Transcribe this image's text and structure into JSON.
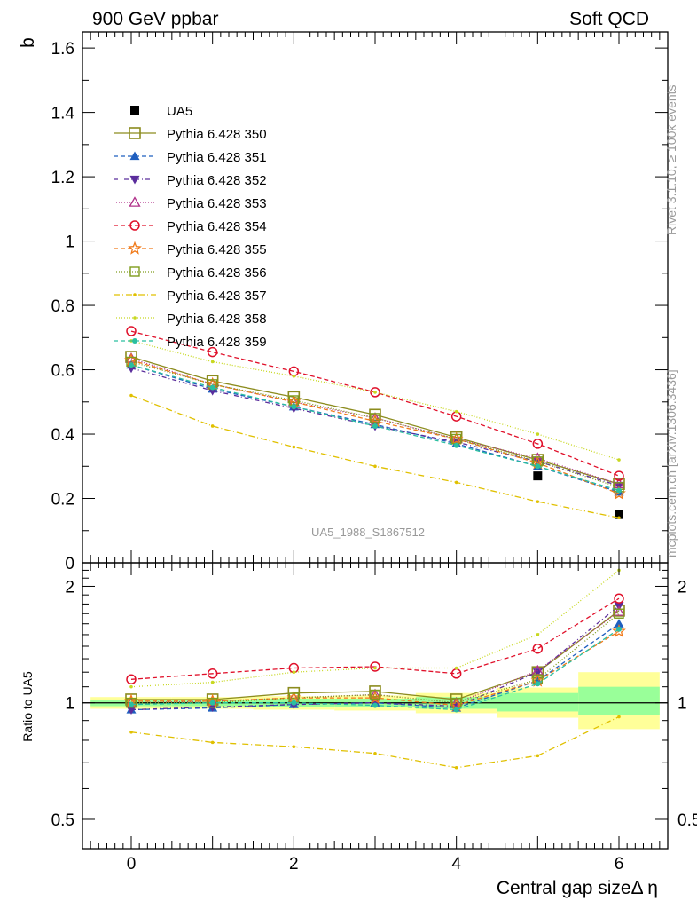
{
  "header": {
    "left": "900 GeV ppbar",
    "right": "Soft QCD"
  },
  "side_texts": {
    "rivet": "Rivet 3.1.10, ≥ 100k events",
    "mcplots": "mcplots.cern.ch [arXiv:1306.3436]"
  },
  "watermark": "UA5_1988_S1867512",
  "chart_data": [
    {
      "type": "scatter",
      "ylabel": "b",
      "xlim": [
        -0.6,
        6.6
      ],
      "ylim": [
        0,
        1.65
      ],
      "yticks": [
        0,
        0.2,
        0.4,
        0.6,
        0.8,
        1,
        1.2,
        1.4,
        1.6
      ],
      "ytick_labels": [
        "0",
        "0.2",
        "0.4",
        "0.6",
        "0.8",
        "1",
        "1.2",
        "1.4",
        "1.6"
      ],
      "grid": false,
      "legend_position": "upper-left",
      "x": [
        0,
        1,
        2,
        3,
        4,
        5,
        6
      ],
      "series": [
        {
          "name": "UA5",
          "color": "#000000",
          "dash": "",
          "marker": "filled-square",
          "values": [
            null,
            null,
            null,
            null,
            null,
            0.27,
            0.15
          ]
        },
        {
          "name": "Pythia 6.428 350",
          "color": "#8c8c1e",
          "dash": "",
          "marker": "open-square",
          "values": [
            0.64,
            0.565,
            0.515,
            0.46,
            0.39,
            0.32,
            0.245
          ]
        },
        {
          "name": "Pythia 6.428 351",
          "color": "#1f5fbf",
          "dash": "5,3",
          "marker": "filled-triangle-up",
          "values": [
            0.615,
            0.54,
            0.485,
            0.43,
            0.37,
            0.3,
            0.22
          ]
        },
        {
          "name": "Pythia 6.428 352",
          "color": "#5a2d9c",
          "dash": "5,3,1,3",
          "marker": "filled-triangle-down",
          "values": [
            0.605,
            0.535,
            0.48,
            0.425,
            0.375,
            0.315,
            0.24
          ]
        },
        {
          "name": "Pythia 6.428 353",
          "color": "#b0308a",
          "dash": "1,2",
          "marker": "open-triangle-up",
          "values": [
            0.635,
            0.555,
            0.5,
            0.45,
            0.385,
            0.325,
            0.245
          ]
        },
        {
          "name": "Pythia 6.428 354",
          "color": "#e0102a",
          "dash": "5,3",
          "marker": "open-circle",
          "values": [
            0.72,
            0.655,
            0.595,
            0.53,
            0.455,
            0.37,
            0.27
          ]
        },
        {
          "name": "Pythia 6.428 355",
          "color": "#f07a1a",
          "dash": "5,3",
          "marker": "open-star",
          "values": [
            0.63,
            0.555,
            0.5,
            0.44,
            0.385,
            0.31,
            0.215
          ]
        },
        {
          "name": "Pythia 6.428 356",
          "color": "#7f9c1c",
          "dash": "1,2",
          "marker": "open-square-small",
          "values": [
            0.625,
            0.555,
            0.505,
            0.45,
            0.385,
            0.315,
            0.235
          ]
        },
        {
          "name": "Pythia 6.428 357",
          "color": "#e0c000",
          "dash": "7,3,1,3",
          "marker": "dot",
          "values": [
            0.52,
            0.425,
            0.36,
            0.3,
            0.25,
            0.19,
            0.14
          ]
        },
        {
          "name": "Pythia 6.428 358",
          "color": "#c8d820",
          "dash": "1,2",
          "marker": "dot",
          "values": [
            0.69,
            0.625,
            0.58,
            0.53,
            0.47,
            0.4,
            0.32
          ]
        },
        {
          "name": "Pythia 6.428 359",
          "color": "#2abfa0",
          "dash": "5,3",
          "marker": "filled-circle-small",
          "values": [
            0.615,
            0.545,
            0.485,
            0.425,
            0.365,
            0.3,
            0.225
          ]
        }
      ]
    },
    {
      "type": "line",
      "ylabel": "Ratio to UA5",
      "xlabel": "Central gap sizeΔ η",
      "xticks": [
        0,
        2,
        4,
        6
      ],
      "xtick_labels": [
        "0",
        "2",
        "4",
        "6"
      ],
      "xlim": [
        -0.6,
        6.6
      ],
      "ylim": [
        0.42,
        2.3
      ],
      "yscale": "log",
      "yticks": [
        0.5,
        1,
        2
      ],
      "ytick_labels": [
        "0.5",
        "1",
        "2"
      ],
      "reference_line": 1,
      "bands": [
        {
          "x0": -0.5,
          "x1": 0.5,
          "inner": [
            0.98,
            1.02
          ],
          "outer": [
            0.965,
            1.035
          ]
        },
        {
          "x0": 0.5,
          "x1": 1.5,
          "inner": [
            0.98,
            1.02
          ],
          "outer": [
            0.965,
            1.035
          ]
        },
        {
          "x0": 1.5,
          "x1": 2.5,
          "inner": [
            0.975,
            1.025
          ],
          "outer": [
            0.96,
            1.04
          ]
        },
        {
          "x0": 2.5,
          "x1": 3.5,
          "inner": [
            0.975,
            1.025
          ],
          "outer": [
            0.955,
            1.045
          ]
        },
        {
          "x0": 3.5,
          "x1": 4.5,
          "inner": [
            0.965,
            1.035
          ],
          "outer": [
            0.94,
            1.06
          ]
        },
        {
          "x0": 4.5,
          "x1": 5.5,
          "inner": [
            0.95,
            1.06
          ],
          "outer": [
            0.915,
            1.095
          ]
        },
        {
          "x0": 5.5,
          "x1": 6.5,
          "inner": [
            0.93,
            1.1
          ],
          "outer": [
            0.855,
            1.2
          ]
        }
      ],
      "x": [
        0,
        1,
        2,
        3,
        4,
        5,
        6
      ],
      "series": [
        {
          "name": "Pythia 6.428 350",
          "values": [
            1.02,
            1.02,
            1.06,
            1.07,
            1.02,
            1.2,
            1.73
          ]
        },
        {
          "name": "Pythia 6.428 351",
          "values": [
            0.96,
            0.97,
            0.99,
            1.0,
            0.97,
            1.14,
            1.6
          ]
        },
        {
          "name": "Pythia 6.428 352",
          "values": [
            0.96,
            0.975,
            0.99,
            1.0,
            0.98,
            1.2,
            1.78
          ]
        },
        {
          "name": "Pythia 6.428 353",
          "values": [
            1.0,
            1.01,
            1.03,
            1.05,
            1.0,
            1.21,
            1.72
          ]
        },
        {
          "name": "Pythia 6.428 354",
          "values": [
            1.15,
            1.19,
            1.23,
            1.24,
            1.19,
            1.38,
            1.86
          ]
        },
        {
          "name": "Pythia 6.428 355",
          "values": [
            1.01,
            1.01,
            1.03,
            1.03,
            0.985,
            1.14,
            1.53
          ]
        },
        {
          "name": "Pythia 6.428 356",
          "values": [
            1.0,
            1.0,
            1.03,
            1.05,
            1.0,
            1.15,
            1.7
          ]
        },
        {
          "name": "Pythia 6.428 357",
          "values": [
            0.84,
            0.79,
            0.77,
            0.74,
            0.68,
            0.73,
            0.92
          ]
        },
        {
          "name": "Pythia 6.428 358",
          "values": [
            1.1,
            1.13,
            1.2,
            1.23,
            1.23,
            1.5,
            2.2
          ]
        },
        {
          "name": "Pythia 6.428 359",
          "values": [
            0.99,
            1.0,
            1.0,
            0.985,
            0.96,
            1.12,
            1.55
          ]
        }
      ]
    }
  ]
}
